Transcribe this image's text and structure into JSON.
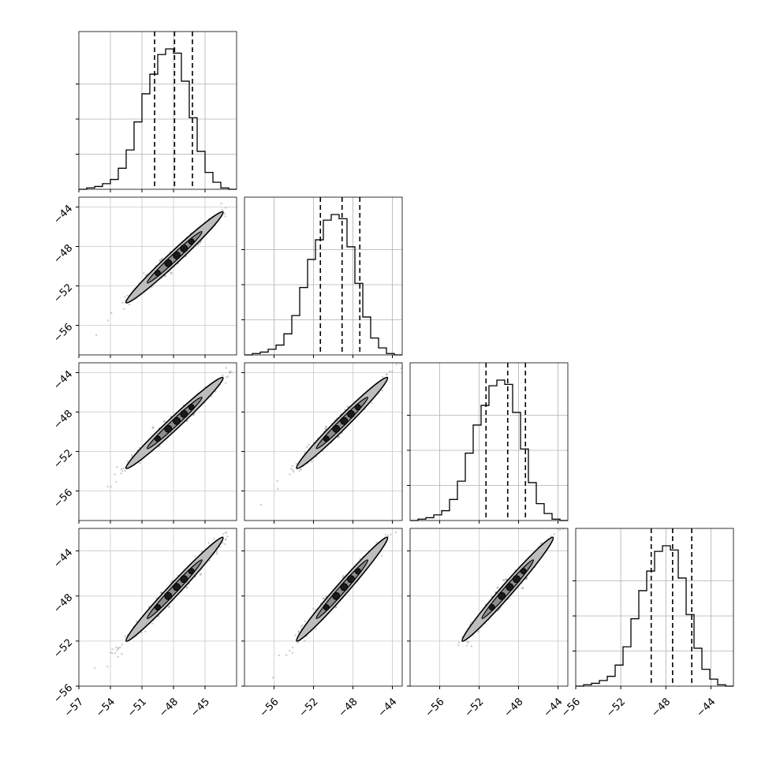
{
  "chart_data": {
    "type": "corner",
    "title": "",
    "parameters": [
      {
        "label": "",
        "range": [
          -57.0,
          -42.0
        ],
        "tick_values": [
          -57,
          -54,
          -51,
          -48,
          -45
        ],
        "tick_labels": [
          "−57",
          "−54",
          "−51",
          "−48",
          "−45"
        ]
      },
      {
        "label": "",
        "range": [
          -59.0,
          -43.0
        ],
        "tick_values": [
          -56,
          -52,
          -48,
          -44
        ],
        "tick_labels": [
          "−56",
          "−52",
          "−48",
          "−44"
        ]
      },
      {
        "label": "",
        "range": [
          -59.0,
          -43.0
        ],
        "tick_values": [
          -56,
          -52,
          -48,
          -44
        ],
        "tick_labels": [
          "−56",
          "−52",
          "−48",
          "−44"
        ]
      },
      {
        "label": "",
        "range": [
          -56.0,
          -42.0
        ],
        "tick_values": [
          -56,
          -52,
          -48,
          -44
        ],
        "tick_labels": [
          "−56",
          "−52",
          "−48",
          "−44"
        ]
      }
    ],
    "quantiles": [
      {
        "low": -49.8,
        "median": -47.9,
        "high": -46.2
      },
      {
        "low": -51.3,
        "median": -49.1,
        "high": -47.3
      },
      {
        "low": -51.3,
        "median": -49.1,
        "high": -47.3
      },
      {
        "low": -49.3,
        "median": -47.4,
        "high": -45.7
      }
    ],
    "histograms": [
      {
        "bin_start": -57.0,
        "bin_width": 0.75,
        "density": [
          0.0,
          0.01,
          0.02,
          0.04,
          0.07,
          0.15,
          0.28,
          0.48,
          0.68,
          0.82,
          0.96,
          1.0,
          0.97,
          0.77,
          0.51,
          0.27,
          0.12,
          0.05,
          0.01,
          0.0
        ]
      },
      {
        "bin_start": -59.0,
        "bin_width": 0.8,
        "density": [
          0.0,
          0.01,
          0.02,
          0.04,
          0.07,
          0.15,
          0.28,
          0.48,
          0.68,
          0.82,
          0.96,
          1.0,
          0.97,
          0.77,
          0.51,
          0.27,
          0.12,
          0.05,
          0.01,
          0.0
        ]
      },
      {
        "bin_start": -59.0,
        "bin_width": 0.8,
        "density": [
          0.0,
          0.01,
          0.02,
          0.04,
          0.07,
          0.15,
          0.28,
          0.48,
          0.68,
          0.82,
          0.96,
          1.0,
          0.97,
          0.77,
          0.51,
          0.27,
          0.12,
          0.05,
          0.01,
          0.0
        ]
      },
      {
        "bin_start": -56.0,
        "bin_width": 0.7,
        "density": [
          0.0,
          0.01,
          0.02,
          0.04,
          0.07,
          0.15,
          0.28,
          0.48,
          0.68,
          0.82,
          0.96,
          1.0,
          0.97,
          0.77,
          0.51,
          0.27,
          0.12,
          0.05,
          0.01,
          0.0
        ]
      }
    ],
    "pairs": [
      {
        "x_param": 0,
        "y_param": 1,
        "mean": [
          -47.9,
          -49.1
        ],
        "slope": 1.0
      },
      {
        "x_param": 0,
        "y_param": 2,
        "mean": [
          -47.9,
          -49.1
        ],
        "slope": 1.0
      },
      {
        "x_param": 1,
        "y_param": 2,
        "mean": [
          -49.1,
          -49.1
        ],
        "slope": 1.0
      },
      {
        "x_param": 0,
        "y_param": 3,
        "mean": [
          -47.9,
          -47.4
        ],
        "slope": 1.0
      },
      {
        "x_param": 1,
        "y_param": 3,
        "mean": [
          -49.1,
          -47.4
        ],
        "slope": 1.0
      },
      {
        "x_param": 2,
        "y_param": 3,
        "mean": [
          -49.1,
          -47.4
        ],
        "slope": 1.0
      }
    ],
    "grid": true
  }
}
